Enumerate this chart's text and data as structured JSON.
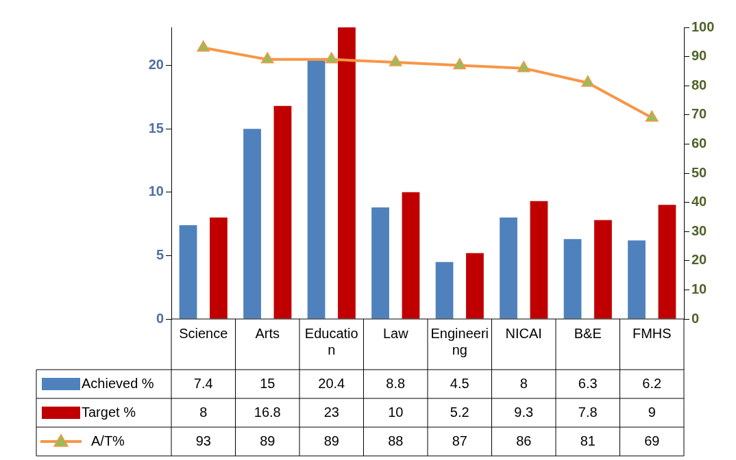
{
  "chart_data": {
    "type": "bar",
    "categories": [
      "Science",
      "Arts",
      "Education",
      "Law",
      "Engineering",
      "NICAI",
      "B&E",
      "FMHS"
    ],
    "series": [
      {
        "name": "Achieved %",
        "color": "#4f81bd",
        "values": [
          7.4,
          15,
          20.4,
          8.8,
          4.5,
          8,
          6.3,
          6.2
        ]
      },
      {
        "name": "Target %",
        "color": "#c00000",
        "values": [
          8,
          16.8,
          23,
          10,
          5.2,
          9.3,
          7.8,
          9
        ]
      },
      {
        "name": "A/T%",
        "color": "#f79646",
        "type": "line",
        "axis": "y2",
        "marker": "triangle",
        "values": [
          93,
          89,
          89,
          88,
          87,
          86,
          81,
          69
        ]
      }
    ],
    "ylim": [
      0,
      23
    ],
    "yticks": [
      0,
      5,
      10,
      15,
      20
    ],
    "y2lim": [
      0,
      100
    ],
    "y2ticks": [
      0,
      10,
      20,
      30,
      40,
      50,
      60,
      70,
      80,
      90,
      100
    ],
    "grid": false,
    "legend": "bottom",
    "data_labels": true
  }
}
